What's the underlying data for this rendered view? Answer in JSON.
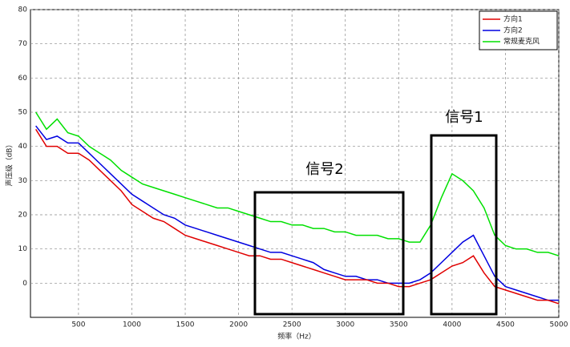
{
  "chart_data": {
    "type": "line",
    "x_label": "频率（Hz）",
    "y_label": "声压级（dB）",
    "x": [
      100,
      200,
      300,
      400,
      500,
      600,
      700,
      800,
      900,
      1000,
      1100,
      1200,
      1300,
      1400,
      1500,
      1600,
      1700,
      1800,
      1900,
      2000,
      2100,
      2200,
      2300,
      2400,
      2500,
      2600,
      2700,
      2800,
      2900,
      3000,
      3100,
      3200,
      3300,
      3400,
      3500,
      3600,
      3700,
      3800,
      3900,
      4000,
      4100,
      4200,
      4300,
      4400,
      4500,
      4600,
      4700,
      4800,
      4900,
      5000
    ],
    "series": [
      {
        "name": "方向1",
        "color": "#e00000",
        "values": [
          45,
          40,
          40,
          38,
          38,
          36,
          33,
          30,
          27,
          23,
          21,
          19,
          18,
          16,
          14,
          13,
          12,
          11,
          10,
          9,
          8,
          8,
          7,
          7,
          6,
          5,
          4,
          3,
          2,
          1,
          1,
          1,
          0,
          0,
          -1,
          -1,
          0,
          1,
          3,
          5,
          6,
          8,
          3,
          -1,
          -2,
          -3,
          -4,
          -5,
          -5,
          -6
        ]
      },
      {
        "name": "方向2",
        "color": "#0000e0",
        "values": [
          46,
          42,
          43,
          41,
          41,
          38,
          35,
          32,
          29,
          26,
          24,
          22,
          20,
          19,
          17,
          16,
          15,
          14,
          13,
          12,
          11,
          10,
          9,
          9,
          8,
          7,
          6,
          4,
          3,
          2,
          2,
          1,
          1,
          0,
          0,
          0,
          1,
          3,
          6,
          9,
          12,
          14,
          8,
          2,
          -1,
          -2,
          -3,
          -4,
          -5,
          -5
        ]
      },
      {
        "name": "常规麦克风",
        "color": "#00e000",
        "values": [
          50,
          45,
          48,
          44,
          43,
          40,
          38,
          36,
          33,
          31,
          29,
          28,
          27,
          26,
          25,
          24,
          23,
          22,
          22,
          21,
          20,
          19,
          18,
          18,
          17,
          17,
          16,
          16,
          15,
          15,
          14,
          14,
          14,
          13,
          13,
          12,
          12,
          17,
          25,
          32,
          30,
          27,
          22,
          14,
          11,
          10,
          10,
          9,
          9,
          8
        ]
      }
    ],
    "xlim": [
      50,
      5000
    ],
    "xticks": [
      500,
      1000,
      1500,
      2000,
      2500,
      3000,
      3500,
      4000,
      4500,
      5000
    ],
    "ylim": [
      -10,
      80
    ],
    "yticks": [
      0,
      10,
      20,
      30,
      40,
      50,
      60,
      70,
      80
    ],
    "grid": true,
    "legend": "top-right",
    "annotations": [
      "信号1",
      "信号2"
    ]
  }
}
